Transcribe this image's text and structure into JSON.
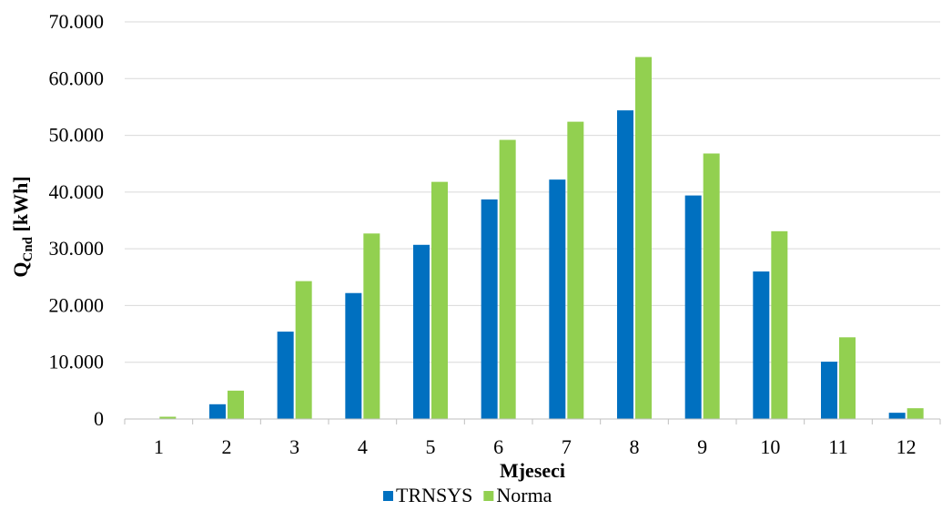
{
  "chart_data": {
    "type": "bar",
    "title": "",
    "xlabel": "Mjeseci",
    "ylabel_main": "Q",
    "ylabel_sub": "Cnd",
    "ylabel_unit": " [kWh]",
    "categories": [
      "1",
      "2",
      "3",
      "4",
      "5",
      "6",
      "7",
      "8",
      "9",
      "10",
      "11",
      "12"
    ],
    "series": [
      {
        "name": "TRNSYS",
        "color": "#0070c0",
        "values": [
          0,
          2600,
          15400,
          22200,
          30700,
          38700,
          42200,
          54400,
          39400,
          26000,
          10100,
          1100
        ]
      },
      {
        "name": "Norma",
        "color": "#92d050",
        "values": [
          400,
          5000,
          24300,
          32700,
          41800,
          49200,
          52400,
          63800,
          46800,
          33100,
          14400,
          1900
        ]
      }
    ],
    "ylim": [
      0,
      70000
    ],
    "yticks": [
      0,
      10000,
      20000,
      30000,
      40000,
      50000,
      60000,
      70000
    ],
    "ytick_labels": [
      "0",
      "10.000",
      "20.000",
      "30.000",
      "40.000",
      "50.000",
      "60.000",
      "70.000"
    ],
    "grid": true,
    "legend_position": "bottom"
  }
}
